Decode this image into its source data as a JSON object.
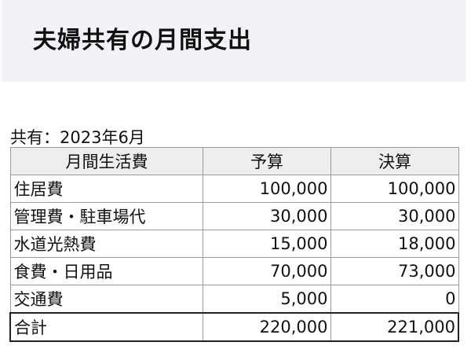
{
  "header": {
    "title": "夫婦共有の月間支出"
  },
  "table": {
    "caption": "共有：2023年6月",
    "columns": [
      "月間生活費",
      "予算",
      "決算"
    ],
    "rows": [
      {
        "item": "住居費",
        "budget": "100,000",
        "actual": "100,000"
      },
      {
        "item": "管理費・駐車場代",
        "budget": "30,000",
        "actual": "30,000"
      },
      {
        "item": "水道光熱費",
        "budget": "15,000",
        "actual": "18,000"
      },
      {
        "item": "食費・日用品",
        "budget": "70,000",
        "actual": "73,000"
      },
      {
        "item": "交通費",
        "budget": "5,000",
        "actual": "0"
      }
    ],
    "total": {
      "item": "合計",
      "budget": "220,000",
      "actual": "221,000"
    }
  },
  "colors": {
    "header_background": "#f3f3f7",
    "column_header_background": "#eeeeee",
    "grid_line": "#9a9a9a",
    "total_border": "#222222"
  }
}
